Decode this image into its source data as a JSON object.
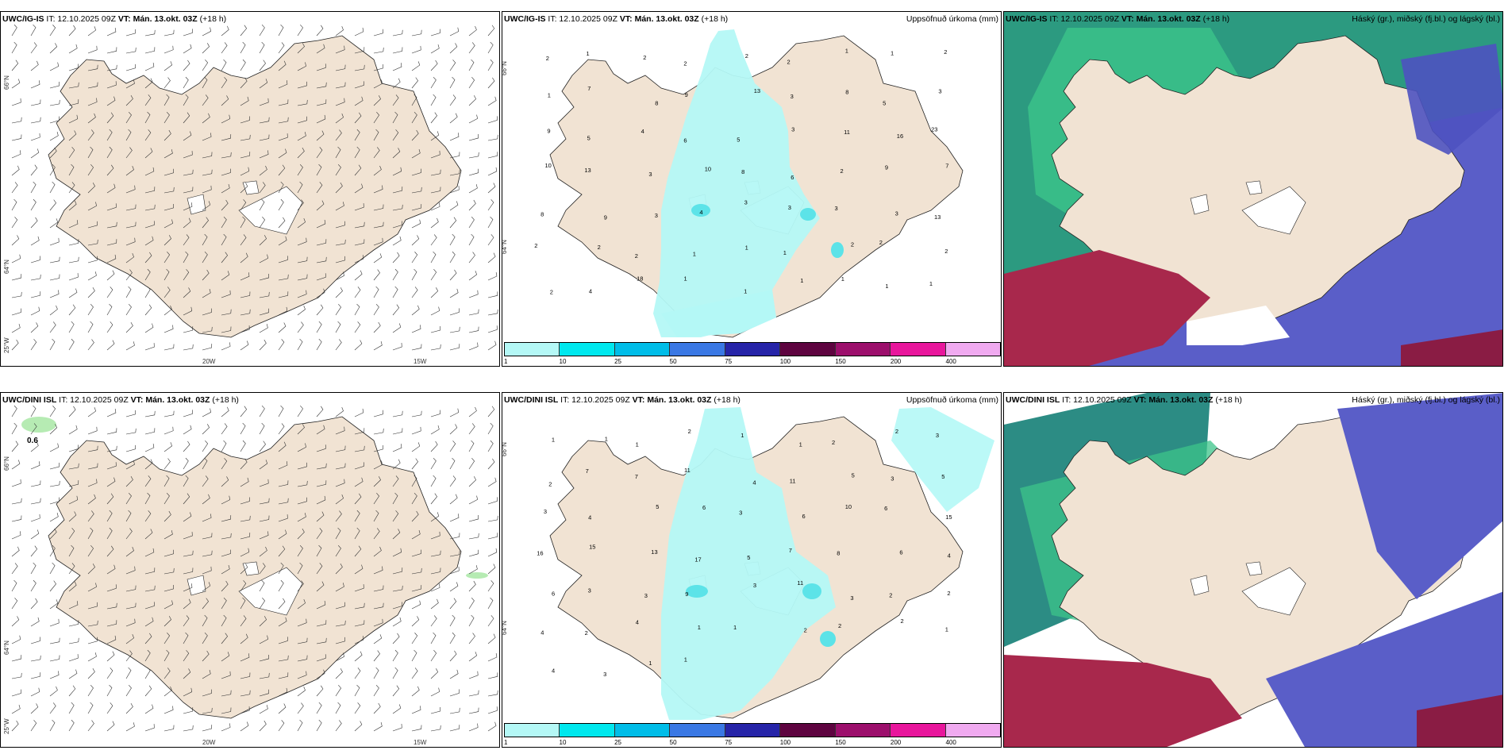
{
  "rows": [
    {
      "wind": {
        "model": "UWC/IG-IS",
        "title_pre": "IT: 12.10.2025 09Z ",
        "title_vt": "VT: Mán. 13.okt. 03Z",
        "title_post": " (+18 h)"
      },
      "precip": {
        "model": "UWC/IG-IS",
        "title_pre": "IT: 12.10.2025 09Z ",
        "title_vt": "VT: Mán. 13.okt. 03Z",
        "title_post": " (+18 h)",
        "right": "Uppsöfnuð úrkoma (mm)"
      },
      "cloud": {
        "model": "UWC/IG-IS",
        "title_pre": "IT: 12.10.2025 09Z ",
        "title_vt": "VT: Mán. 13.okt. 03Z",
        "title_post": " (+18 h)",
        "right": "Háský (gr.), miðský (fj.bl.) og lágský (bl.)"
      }
    },
    {
      "wind": {
        "model": "UWC/DINI ISL",
        "title_pre": "IT: 12.10.2025 09Z ",
        "title_vt": "VT: Mán. 13.okt. 03Z",
        "title_post": " (+18 h)",
        "label": "0.6"
      },
      "precip": {
        "model": "UWC/DINI ISL",
        "title_pre": "IT: 12.10.2025 09Z ",
        "title_vt": "VT: Mán. 13.okt. 03Z",
        "title_post": " (+18 h)",
        "right": "Uppsöfnuð úrkoma (mm)"
      },
      "cloud": {
        "model": "UWC/DINI ISL",
        "title_pre": "IT: 12.10.2025 09Z ",
        "title_vt": "VT: Mán. 13.okt. 03Z",
        "title_post": " (+18 h)",
        "right": "Háský (gr.), miðský (fj.bl.) og lágský (bl.)"
      }
    }
  ],
  "graticule": {
    "lat66": "66°N",
    "lat64": "64°N",
    "lon25": "25°W",
    "lon20": "20W",
    "lon15": "15W"
  },
  "colorbar": {
    "labels": [
      "1",
      "10",
      "25",
      "50",
      "75",
      "100",
      "150",
      "200",
      "400"
    ],
    "colors": [
      "#b4f8f6",
      "#00e8ee",
      "#00bde8",
      "#3a78e4",
      "#2624a8",
      "#5e0440",
      "#9c0f6c",
      "#e8169c",
      "#f0aaf0"
    ]
  },
  "precip_values": {
    "top": [
      "2",
      "1",
      "2",
      "2",
      "2",
      "2",
      "1",
      "1",
      "2",
      "1",
      "7",
      "8",
      "9",
      "13",
      "3",
      "8",
      "5",
      "3",
      "9",
      "5",
      "4",
      "6",
      "5",
      "3",
      "11",
      "16",
      "23",
      "10",
      "13",
      "3",
      "10",
      "8",
      "6",
      "2",
      "9",
      "7",
      "8",
      "9",
      "3",
      "4",
      "3",
      "3",
      "3",
      "3",
      "13",
      "2",
      "2",
      "2",
      "1",
      "1",
      "1",
      "2",
      "2",
      "2",
      "2",
      "4",
      "18",
      "1",
      "1",
      "1",
      "1",
      "1",
      "1"
    ],
    "bottom": [
      "1",
      "1",
      "1",
      "2",
      "1",
      "1",
      "2",
      "2",
      "3",
      "2",
      "7",
      "7",
      "11",
      "4",
      "11",
      "5",
      "3",
      "5",
      "3",
      "4",
      "5",
      "6",
      "3",
      "6",
      "10",
      "6",
      "15",
      "16",
      "15",
      "13",
      "17",
      "5",
      "7",
      "8",
      "6",
      "4",
      "6",
      "3",
      "3",
      "9",
      "3",
      "11",
      "3",
      "2",
      "2",
      "4",
      "2",
      "4",
      "1",
      "1",
      "2",
      "2",
      "2",
      "1",
      "4",
      "3",
      "1",
      "1"
    ]
  }
}
